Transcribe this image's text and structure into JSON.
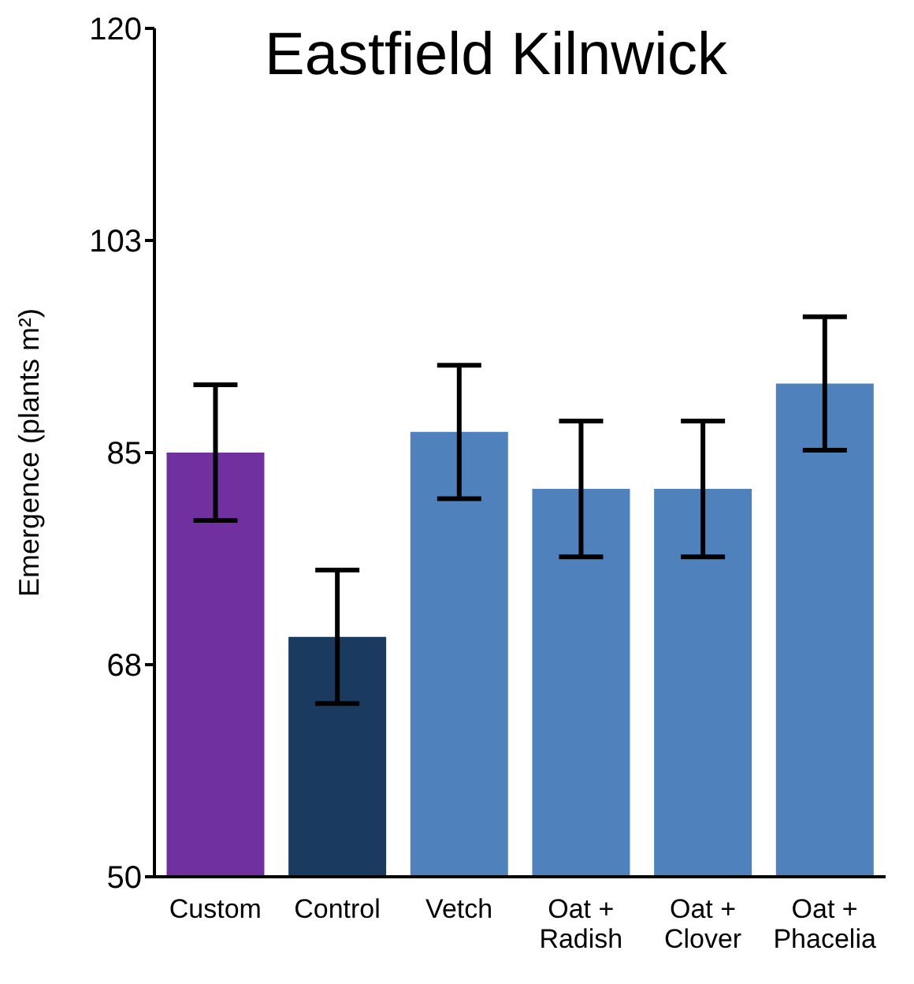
{
  "chart_data": {
    "type": "bar",
    "title": "Eastfield Kilnwick",
    "ylabel": "Emergence (plants m²)",
    "categories": [
      "Custom",
      "Control",
      "Vetch",
      "Oat + Radish",
      "Oat + Clover",
      "Oat + Phacelia"
    ],
    "values": [
      85,
      69.8,
      86.7,
      82,
      82,
      90.7
    ],
    "colors": [
      "#7030a0",
      "#1a3a5f",
      "#4f81bd",
      "#4f81bd",
      "#4f81bd",
      "#4f81bd"
    ],
    "errors": [
      5.6,
      5.5,
      5.5,
      5.6,
      5.6,
      5.5
    ],
    "ylim": [
      50,
      120
    ],
    "yticks": [
      50,
      {
        "value": 67.5,
        "label": "68"
      },
      85,
      {
        "value": 102.5,
        "label": "103"
      },
      120
    ],
    "grid": false
  }
}
